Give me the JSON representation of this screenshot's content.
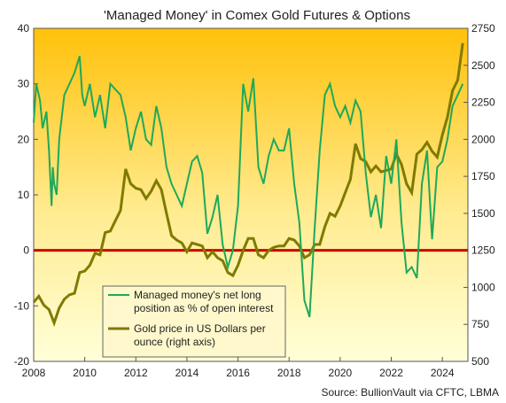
{
  "chart_data": {
    "type": "line",
    "title": "'Managed Money' in Comex Gold Futures & Options",
    "source": "Source: BullionVault via CFTC, LBMA",
    "x_ticks": [
      "2008",
      "2010",
      "2012",
      "2014",
      "2016",
      "2018",
      "2020",
      "2022",
      "2024"
    ],
    "xlim": [
      2008,
      2025.0
    ],
    "left_axis": {
      "ticks": [
        40,
        30,
        20,
        10,
        0,
        -10,
        -20
      ],
      "ylim": [
        -20,
        40
      ]
    },
    "right_axis": {
      "ticks": [
        2750,
        2500,
        2250,
        2000,
        1750,
        1500,
        1250,
        1000,
        750,
        500
      ],
      "ylim": [
        500,
        2750
      ]
    },
    "zero_line": {
      "value": 0,
      "color": "#cc0000"
    },
    "legend": {
      "placement": "lower-left",
      "entries": [
        {
          "text_line1": "Managed money's net long",
          "text_line2": "position as % of open interest"
        },
        {
          "text_line1": "Gold price in US Dollars per",
          "text_line2": "ounce (right axis)"
        }
      ]
    },
    "series": [
      {
        "name": "Managed money's net long position as % of open interest",
        "axis": "left",
        "color": "#1fa85a",
        "x": [
          2008.0,
          2008.1,
          2008.25,
          2008.35,
          2008.5,
          2008.6,
          2008.7,
          2008.75,
          2008.8,
          2008.9,
          2009.0,
          2009.2,
          2009.4,
          2009.6,
          2009.8,
          2009.9,
          2010.0,
          2010.2,
          2010.4,
          2010.6,
          2010.8,
          2011.0,
          2011.2,
          2011.4,
          2011.6,
          2011.8,
          2012.0,
          2012.2,
          2012.4,
          2012.6,
          2012.8,
          2013.0,
          2013.2,
          2013.4,
          2013.6,
          2013.8,
          2014.0,
          2014.2,
          2014.4,
          2014.6,
          2014.8,
          2015.0,
          2015.2,
          2015.4,
          2015.6,
          2015.8,
          2016.0,
          2016.2,
          2016.4,
          2016.6,
          2016.8,
          2017.0,
          2017.2,
          2017.4,
          2017.6,
          2017.8,
          2018.0,
          2018.2,
          2018.4,
          2018.6,
          2018.8,
          2019.0,
          2019.2,
          2019.4,
          2019.6,
          2019.8,
          2020.0,
          2020.2,
          2020.4,
          2020.6,
          2020.8,
          2021.0,
          2021.2,
          2021.4,
          2021.6,
          2021.8,
          2022.0,
          2022.2,
          2022.4,
          2022.6,
          2022.8,
          2023.0,
          2023.2,
          2023.4,
          2023.6,
          2023.8,
          2024.0,
          2024.2,
          2024.4,
          2024.6,
          2024.8
        ],
        "y": [
          23,
          30,
          27,
          22,
          25,
          18,
          8,
          15,
          12,
          10,
          20,
          28,
          30,
          32,
          35,
          28,
          26,
          30,
          24,
          28,
          22,
          30,
          29,
          28,
          24,
          18,
          22,
          25,
          20,
          19,
          26,
          22,
          15,
          12,
          10,
          8,
          12,
          16,
          17,
          14,
          3,
          6,
          10,
          1,
          -3,
          0,
          8,
          30,
          25,
          31,
          15,
          12,
          17,
          20,
          18,
          18,
          22,
          12,
          5,
          -9,
          -12,
          4,
          18,
          28,
          30,
          26,
          24,
          26,
          23,
          27,
          25,
          14,
          6,
          10,
          4,
          17,
          12,
          20,
          5,
          -4,
          -3,
          -5,
          12,
          18,
          2,
          15,
          16,
          20,
          26,
          28,
          30
        ]
      },
      {
        "name": "Gold price in US Dollars per ounce (right axis)",
        "axis": "right",
        "color": "#7f7a00",
        "x": [
          2008.0,
          2008.2,
          2008.4,
          2008.6,
          2008.8,
          2009.0,
          2009.2,
          2009.4,
          2009.6,
          2009.8,
          2010.0,
          2010.2,
          2010.4,
          2010.6,
          2010.8,
          2011.0,
          2011.2,
          2011.4,
          2011.6,
          2011.8,
          2012.0,
          2012.2,
          2012.4,
          2012.6,
          2012.8,
          2013.0,
          2013.2,
          2013.4,
          2013.6,
          2013.8,
          2014.0,
          2014.2,
          2014.4,
          2014.6,
          2014.8,
          2015.0,
          2015.2,
          2015.4,
          2015.6,
          2015.8,
          2016.0,
          2016.2,
          2016.4,
          2016.6,
          2016.8,
          2017.0,
          2017.2,
          2017.4,
          2017.6,
          2017.8,
          2018.0,
          2018.2,
          2018.4,
          2018.6,
          2018.8,
          2019.0,
          2019.2,
          2019.4,
          2019.6,
          2019.8,
          2020.0,
          2020.2,
          2020.4,
          2020.6,
          2020.8,
          2021.0,
          2021.2,
          2021.4,
          2021.6,
          2021.8,
          2022.0,
          2022.2,
          2022.4,
          2022.6,
          2022.8,
          2023.0,
          2023.2,
          2023.4,
          2023.6,
          2023.8,
          2024.0,
          2024.2,
          2024.4,
          2024.6,
          2024.8
        ],
        "y": [
          900,
          940,
          880,
          850,
          760,
          860,
          920,
          950,
          960,
          1100,
          1110,
          1150,
          1230,
          1220,
          1370,
          1380,
          1450,
          1520,
          1800,
          1700,
          1670,
          1660,
          1600,
          1650,
          1720,
          1660,
          1500,
          1350,
          1320,
          1300,
          1240,
          1300,
          1290,
          1280,
          1200,
          1240,
          1200,
          1180,
          1100,
          1080,
          1150,
          1250,
          1330,
          1330,
          1220,
          1200,
          1250,
          1270,
          1280,
          1280,
          1330,
          1320,
          1280,
          1200,
          1220,
          1290,
          1290,
          1410,
          1500,
          1480,
          1550,
          1640,
          1730,
          1970,
          1870,
          1850,
          1780,
          1820,
          1780,
          1790,
          1800,
          1900,
          1830,
          1700,
          1640,
          1900,
          1930,
          1980,
          1920,
          1880,
          2030,
          2150,
          2330,
          2400,
          2650
        ]
      }
    ]
  }
}
